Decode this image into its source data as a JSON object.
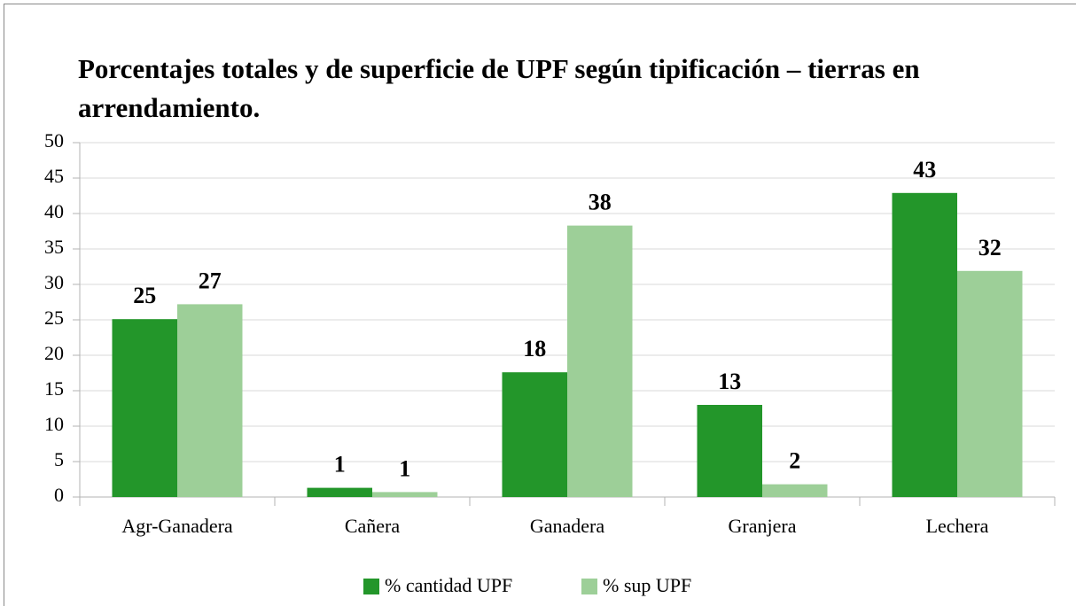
{
  "chart_data": {
    "type": "bar",
    "title": "Porcentajes totales y de superficie de UPF según tipificación – tierras en arrendamiento.",
    "categories": [
      "Agr-Ganadera",
      "Cañera",
      "Ganadera",
      "Granjera",
      "Lechera"
    ],
    "series": [
      {
        "name": "% cantidad UPF",
        "color": "#23962a",
        "values": [
          25.1,
          1.3,
          17.6,
          13.0,
          42.9
        ],
        "value_labels": [
          "25",
          "1",
          "18",
          "13",
          "43"
        ]
      },
      {
        "name": "% sup UPF",
        "color": "#9dcf98",
        "values": [
          27.2,
          0.7,
          38.3,
          1.8,
          31.9
        ],
        "value_labels": [
          "27",
          "1",
          "38",
          "2",
          "32"
        ]
      }
    ],
    "ylim": [
      0,
      50
    ],
    "yticks": [
      0,
      5,
      10,
      15,
      20,
      25,
      30,
      35,
      40,
      45,
      50
    ],
    "grid": true,
    "legend": "bottom"
  }
}
